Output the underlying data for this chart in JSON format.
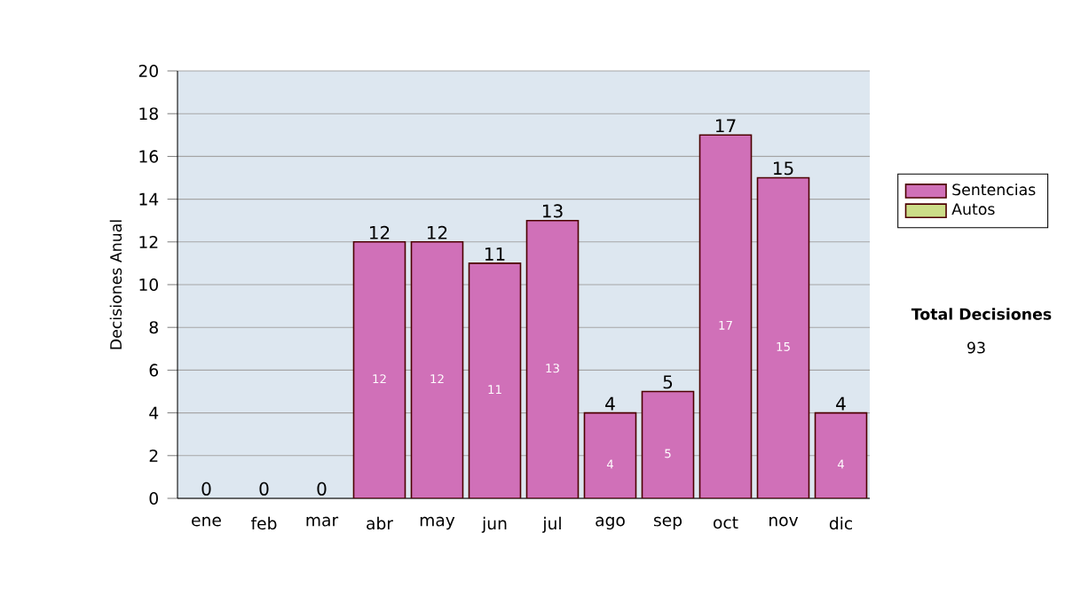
{
  "chart_data": {
    "type": "bar",
    "stacked": true,
    "ylabel": "Decisiones Anual",
    "categories": [
      "ene",
      "feb",
      "mar",
      "abr",
      "may",
      "jun",
      "jul",
      "ago",
      "sep",
      "oct",
      "nov",
      "dic"
    ],
    "series": [
      {
        "name": "Sentencias",
        "color": "#d070b8",
        "values": [
          0,
          0,
          0,
          12,
          12,
          11,
          13,
          4,
          5,
          17,
          15,
          4
        ],
        "value_labels": [
          null,
          null,
          null,
          "12",
          "12",
          "11",
          "13",
          "4",
          "5",
          "17",
          "15",
          "4"
        ]
      },
      {
        "name": "Autos",
        "color": "#ccdd88",
        "values": [
          0,
          0,
          0,
          0,
          0,
          0,
          0,
          0,
          0,
          0,
          0,
          0
        ]
      }
    ],
    "totals": [
      "0",
      "0",
      "0",
      "12",
      "12",
      "11",
      "13",
      "4",
      "5",
      "17",
      "15",
      "4"
    ],
    "ylim": [
      0,
      20
    ],
    "yticks": [
      0,
      2,
      4,
      6,
      8,
      10,
      12,
      14,
      16,
      18,
      20
    ],
    "grid": "y",
    "legend": "right",
    "annotations": [
      "Total Decisiones",
      "93"
    ]
  }
}
